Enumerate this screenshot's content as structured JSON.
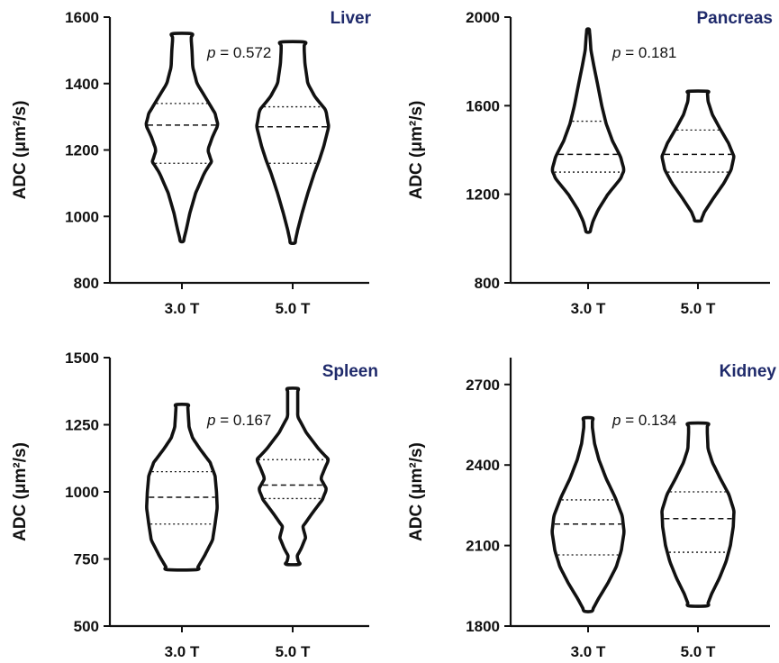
{
  "chart_data": [
    {
      "type": "violin",
      "title": "Liver",
      "ylabel": "ADC (μm²/s)",
      "ylim": [
        800,
        1600
      ],
      "yticks": [
        800,
        1000,
        1200,
        1400,
        1600
      ],
      "categories": [
        "3.0 T",
        "5.0 T"
      ],
      "p_value": "0.572",
      "series": [
        {
          "category": "3.0 T",
          "min": 925,
          "max": 1550,
          "q1": 1160,
          "median": 1275,
          "q3": 1340,
          "profile": [
            [
              925,
              0.04
            ],
            [
              960,
              0.12
            ],
            [
              1010,
              0.22
            ],
            [
              1070,
              0.38
            ],
            [
              1130,
              0.62
            ],
            [
              1165,
              0.82
            ],
            [
              1200,
              0.72
            ],
            [
              1240,
              0.85
            ],
            [
              1275,
              1.0
            ],
            [
              1310,
              0.92
            ],
            [
              1350,
              0.7
            ],
            [
              1400,
              0.42
            ],
            [
              1450,
              0.3
            ],
            [
              1500,
              0.28
            ],
            [
              1530,
              0.26
            ],
            [
              1550,
              0.26
            ]
          ]
        },
        {
          "category": "5.0 T",
          "min": 920,
          "max": 1525,
          "q1": 1160,
          "median": 1270,
          "q3": 1330,
          "profile": [
            [
              920,
              0.06
            ],
            [
              960,
              0.14
            ],
            [
              1010,
              0.26
            ],
            [
              1070,
              0.42
            ],
            [
              1130,
              0.6
            ],
            [
              1170,
              0.74
            ],
            [
              1210,
              0.86
            ],
            [
              1270,
              1.0
            ],
            [
              1320,
              0.92
            ],
            [
              1360,
              0.62
            ],
            [
              1400,
              0.42
            ],
            [
              1460,
              0.34
            ],
            [
              1500,
              0.32
            ],
            [
              1525,
              0.32
            ]
          ]
        }
      ]
    },
    {
      "type": "violin",
      "title": "Pancreas",
      "ylabel": "ADC (μm²/s)",
      "ylim": [
        800,
        2000
      ],
      "yticks": [
        800,
        1200,
        1600,
        2000
      ],
      "categories": [
        "3.0 T",
        "5.0 T"
      ],
      "p_value": "0.181",
      "series": [
        {
          "category": "3.0 T",
          "min": 1030,
          "max": 1945,
          "q1": 1300,
          "median": 1380,
          "q3": 1530,
          "profile": [
            [
              1030,
              0.05
            ],
            [
              1080,
              0.14
            ],
            [
              1130,
              0.28
            ],
            [
              1200,
              0.55
            ],
            [
              1270,
              0.9
            ],
            [
              1310,
              1.0
            ],
            [
              1370,
              0.9
            ],
            [
              1440,
              0.68
            ],
            [
              1520,
              0.5
            ],
            [
              1600,
              0.38
            ],
            [
              1700,
              0.26
            ],
            [
              1780,
              0.16
            ],
            [
              1850,
              0.08
            ],
            [
              1920,
              0.05
            ],
            [
              1945,
              0.03
            ]
          ]
        },
        {
          "category": "5.0 T",
          "min": 1080,
          "max": 1665,
          "q1": 1300,
          "median": 1380,
          "q3": 1490,
          "profile": [
            [
              1080,
              0.08
            ],
            [
              1120,
              0.18
            ],
            [
              1180,
              0.42
            ],
            [
              1250,
              0.72
            ],
            [
              1310,
              0.92
            ],
            [
              1370,
              1.0
            ],
            [
              1430,
              0.85
            ],
            [
              1500,
              0.6
            ],
            [
              1560,
              0.4
            ],
            [
              1620,
              0.28
            ],
            [
              1665,
              0.26
            ]
          ]
        }
      ]
    },
    {
      "type": "violin",
      "title": "Spleen",
      "ylabel": "ADC (μm²/s)",
      "ylim": [
        500,
        1500
      ],
      "yticks": [
        500,
        750,
        1000,
        1250,
        1500
      ],
      "categories": [
        "3.0 T",
        "5.0 T"
      ],
      "p_value": "0.167",
      "series": [
        {
          "category": "3.0 T",
          "min": 710,
          "max": 1325,
          "q1": 880,
          "median": 980,
          "q3": 1075,
          "profile": [
            [
              710,
              0.4
            ],
            [
              760,
              0.62
            ],
            [
              820,
              0.85
            ],
            [
              880,
              0.92
            ],
            [
              940,
              0.98
            ],
            [
              1000,
              0.96
            ],
            [
              1060,
              0.92
            ],
            [
              1110,
              0.78
            ],
            [
              1160,
              0.5
            ],
            [
              1200,
              0.3
            ],
            [
              1240,
              0.2
            ],
            [
              1280,
              0.18
            ],
            [
              1325,
              0.16
            ]
          ]
        },
        {
          "category": "5.0 T",
          "min": 730,
          "max": 1385,
          "q1": 975,
          "median": 1025,
          "q3": 1120,
          "profile": [
            [
              730,
              0.18
            ],
            [
              760,
              0.12
            ],
            [
              790,
              0.24
            ],
            [
              830,
              0.36
            ],
            [
              870,
              0.28
            ],
            [
              920,
              0.54
            ],
            [
              970,
              0.82
            ],
            [
              1010,
              0.94
            ],
            [
              1050,
              0.78
            ],
            [
              1090,
              0.9
            ],
            [
              1120,
              1.0
            ],
            [
              1160,
              0.72
            ],
            [
              1220,
              0.38
            ],
            [
              1280,
              0.14
            ],
            [
              1330,
              0.14
            ],
            [
              1385,
              0.14
            ]
          ]
        }
      ]
    },
    {
      "type": "violin",
      "title": "Kidney",
      "ylabel": "ADC (μm²/s)",
      "ylim": [
        1800,
        2800
      ],
      "yticks": [
        1800,
        2100,
        2400,
        2700
      ],
      "categories": [
        "3.0 T",
        "5.0 T"
      ],
      "p_value": "0.134",
      "series": [
        {
          "category": "3.0 T",
          "min": 1855,
          "max": 2575,
          "q1": 2065,
          "median": 2180,
          "q3": 2270,
          "profile": [
            [
              1855,
              0.1
            ],
            [
              1900,
              0.28
            ],
            [
              1960,
              0.55
            ],
            [
              2020,
              0.78
            ],
            [
              2080,
              0.92
            ],
            [
              2150,
              1.0
            ],
            [
              2210,
              0.95
            ],
            [
              2280,
              0.75
            ],
            [
              2350,
              0.5
            ],
            [
              2420,
              0.3
            ],
            [
              2480,
              0.18
            ],
            [
              2540,
              0.12
            ],
            [
              2575,
              0.12
            ]
          ]
        },
        {
          "category": "5.0 T",
          "min": 1875,
          "max": 2555,
          "q1": 2075,
          "median": 2200,
          "q3": 2300,
          "profile": [
            [
              1875,
              0.25
            ],
            [
              1920,
              0.38
            ],
            [
              1980,
              0.6
            ],
            [
              2040,
              0.78
            ],
            [
              2100,
              0.9
            ],
            [
              2170,
              0.98
            ],
            [
              2230,
              1.0
            ],
            [
              2290,
              0.86
            ],
            [
              2350,
              0.62
            ],
            [
              2410,
              0.4
            ],
            [
              2460,
              0.28
            ],
            [
              2520,
              0.26
            ],
            [
              2555,
              0.26
            ]
          ]
        }
      ]
    }
  ]
}
